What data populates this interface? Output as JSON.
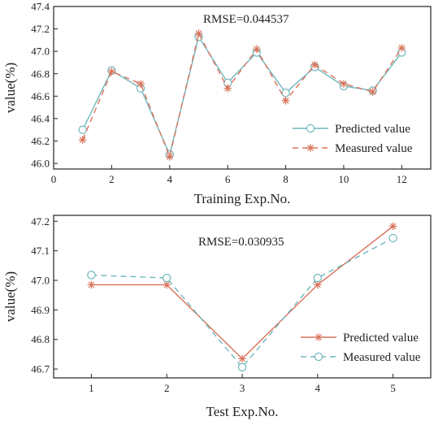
{
  "chart_data": [
    {
      "type": "line",
      "annotation": "RMSE=0.044537",
      "xlabel": "Training Exp.No.",
      "ylabel": "value(%)",
      "xlim": [
        0,
        13
      ],
      "ylim": [
        45.95,
        47.4
      ],
      "x_ticks": [
        0,
        2,
        4,
        6,
        8,
        10,
        12
      ],
      "y_ticks": [
        46.0,
        46.2,
        46.4,
        46.6,
        46.8,
        47.0,
        47.2,
        47.4
      ],
      "x_tick_labels": [
        "0",
        "2",
        "4",
        "6",
        "8",
        "10",
        "12"
      ],
      "y_tick_labels": [
        "46.0",
        "46.2",
        "46.4",
        "46.6",
        "46.8",
        "47.0",
        "47.2",
        "47.4"
      ],
      "legend_position": "bottom-right",
      "x": [
        1,
        2,
        3,
        4,
        5,
        6,
        7,
        8,
        9,
        10,
        11,
        12
      ],
      "series": [
        {
          "name": "Predicted value",
          "color": "#6fb7bd",
          "line": "solid",
          "marker": "circle",
          "values": [
            46.3,
            46.83,
            46.67,
            46.08,
            47.13,
            46.72,
            46.99,
            46.63,
            46.86,
            46.69,
            46.65,
            46.99
          ]
        },
        {
          "name": "Measured value",
          "color": "#d9735a",
          "line": "dashed",
          "marker": "asterisk",
          "values": [
            46.21,
            46.82,
            46.71,
            46.06,
            47.16,
            46.67,
            47.02,
            46.56,
            46.88,
            46.71,
            46.64,
            47.03
          ]
        }
      ]
    },
    {
      "type": "line",
      "annotation": "RMSE=0.030935",
      "xlabel": "Test Exp.No.",
      "ylabel": "value(%)",
      "xlim": [
        0.5,
        5.5
      ],
      "ylim": [
        46.67,
        47.22
      ],
      "x_ticks": [
        1,
        2,
        3,
        4,
        5
      ],
      "y_ticks": [
        46.7,
        46.8,
        46.9,
        47.0,
        47.1,
        47.2
      ],
      "x_tick_labels": [
        "1",
        "2",
        "3",
        "4",
        "5"
      ],
      "y_tick_labels": [
        "46.7",
        "46.8",
        "46.9",
        "47.0",
        "47.1",
        "47.2"
      ],
      "legend_position": "bottom-right",
      "x": [
        1,
        2,
        3,
        4,
        5
      ],
      "series": [
        {
          "name": "Predicted value",
          "color": "#d9735a",
          "line": "solid",
          "marker": "asterisk",
          "values": [
            46.985,
            46.985,
            46.735,
            46.985,
            47.183
          ]
        },
        {
          "name": "Measured value",
          "color": "#6fb7bd",
          "line": "dashed",
          "marker": "circle",
          "values": [
            47.018,
            47.008,
            46.706,
            47.008,
            47.143
          ]
        }
      ]
    }
  ]
}
